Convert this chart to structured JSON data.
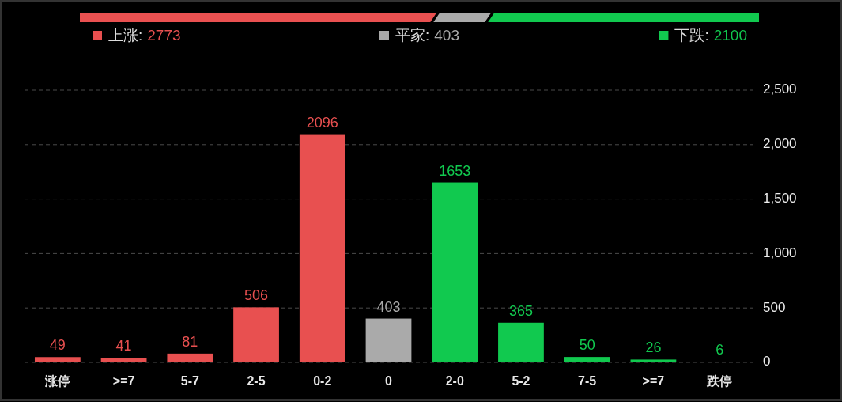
{
  "chart_data": [
    {
      "type": "bar",
      "orientation": "horizontal",
      "stacked": true,
      "categories": [
        null
      ],
      "series": [
        {
          "name": "上涨:",
          "color": "#e85050",
          "values": [
            2773
          ]
        },
        {
          "name": "平家:",
          "color": "#aaaaaa",
          "values": [
            403
          ]
        },
        {
          "name": "下跌:",
          "color": "#11c94f",
          "values": [
            2100
          ]
        }
      ],
      "data_labels": true,
      "legend": "bottom"
    },
    {
      "type": "bar",
      "categories": [
        "涨停",
        ">=7",
        "5-7",
        "2-5",
        "0-2",
        "0",
        "2-0",
        "5-2",
        "7-5",
        ">=7",
        "跌停"
      ],
      "values": [
        49,
        41,
        81,
        506,
        2096,
        403,
        1653,
        365,
        50,
        26,
        6
      ],
      "colors": [
        "#e85050",
        "#e85050",
        "#e85050",
        "#e85050",
        "#e85050",
        "#aaaaaa",
        "#11c94f",
        "#11c94f",
        "#11c94f",
        "#11c94f",
        "#11c94f"
      ],
      "ylim": [
        0,
        2500
      ],
      "yticks": [
        0,
        500,
        {
          "value": 1000,
          "label": "1,000"
        },
        {
          "value": 1500,
          "label": "1,500"
        },
        {
          "value": 2000,
          "label": "2,000"
        },
        {
          "value": 2500,
          "label": "2,500"
        }
      ],
      "grid": "y",
      "data_labels": true
    }
  ]
}
